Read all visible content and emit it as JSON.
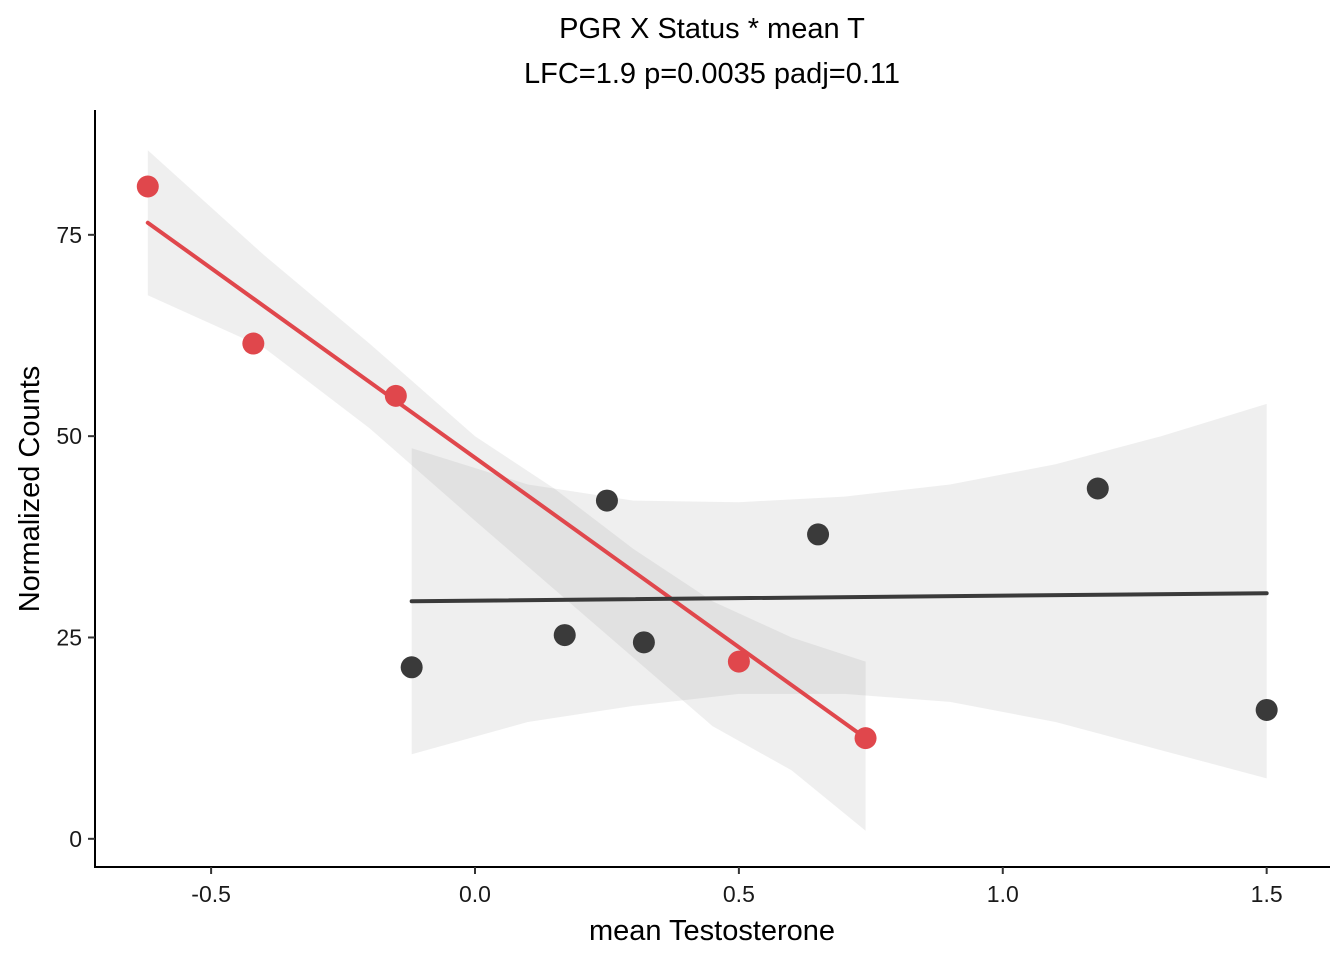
{
  "chart_data": {
    "type": "scatter",
    "title": "PGR X Status * mean T",
    "subtitle": "LFC=1.9 p=0.0035 padj=0.11",
    "xlabel": "mean Testosterone",
    "ylabel": "Normalized Counts",
    "xlim": [
      -0.72,
      1.62
    ],
    "ylim": [
      -3.5,
      90.5
    ],
    "x_ticks": [
      -0.5,
      0.0,
      0.5,
      1.0,
      1.5
    ],
    "x_tick_labels": [
      "-0.5",
      "0.0",
      "0.5",
      "1.0",
      "1.5"
    ],
    "y_ticks": [
      0,
      25,
      50,
      75
    ],
    "y_tick_labels": [
      "0",
      "25",
      "50",
      "75"
    ],
    "grid": false,
    "legend": "none",
    "series": [
      {
        "color": "#e0474c",
        "x": [
          -0.62,
          -0.42,
          -0.15,
          0.5,
          0.74
        ],
        "y": [
          81,
          61.5,
          55,
          22,
          12.5
        ],
        "fit": {
          "x": [
            -0.62,
            0.74
          ],
          "y": [
            76.5,
            12.5
          ],
          "ci_upper": [
            [
              -0.62,
              85.5
            ],
            [
              -0.4,
              72.5
            ],
            [
              -0.2,
              61.5
            ],
            [
              0.0,
              50.0
            ],
            [
              0.15,
              43.5
            ],
            [
              0.3,
              36.0
            ],
            [
              0.45,
              29.5
            ],
            [
              0.6,
              25.0
            ],
            [
              0.74,
              22.0
            ]
          ],
          "ci_lower": [
            [
              0.74,
              1.0
            ],
            [
              0.6,
              8.5
            ],
            [
              0.45,
              14.0
            ],
            [
              0.3,
              22.5
            ],
            [
              0.15,
              31.0
            ],
            [
              0.0,
              39.5
            ],
            [
              -0.2,
              51.0
            ],
            [
              -0.4,
              61.0
            ],
            [
              -0.62,
              67.5
            ]
          ]
        }
      },
      {
        "color": "#3a3a3a",
        "x": [
          -0.12,
          0.17,
          0.25,
          0.32,
          0.65,
          1.18,
          1.5
        ],
        "y": [
          21.3,
          25.3,
          42.0,
          24.4,
          37.8,
          43.5,
          16.0
        ],
        "fit": {
          "x": [
            -0.12,
            1.5
          ],
          "y": [
            29.5,
            30.5
          ],
          "ci_upper": [
            [
              -0.12,
              48.5
            ],
            [
              0.1,
              44.0
            ],
            [
              0.3,
              42.0
            ],
            [
              0.5,
              41.8
            ],
            [
              0.7,
              42.5
            ],
            [
              0.9,
              44.0
            ],
            [
              1.1,
              46.5
            ],
            [
              1.3,
              50.0
            ],
            [
              1.5,
              54.0
            ]
          ],
          "ci_lower": [
            [
              1.5,
              7.5
            ],
            [
              1.3,
              11.0
            ],
            [
              1.1,
              14.5
            ],
            [
              0.9,
              17.0
            ],
            [
              0.7,
              18.0
            ],
            [
              0.5,
              18.0
            ],
            [
              0.3,
              16.5
            ],
            [
              0.1,
              14.5
            ],
            [
              -0.12,
              10.5
            ]
          ]
        }
      }
    ]
  }
}
